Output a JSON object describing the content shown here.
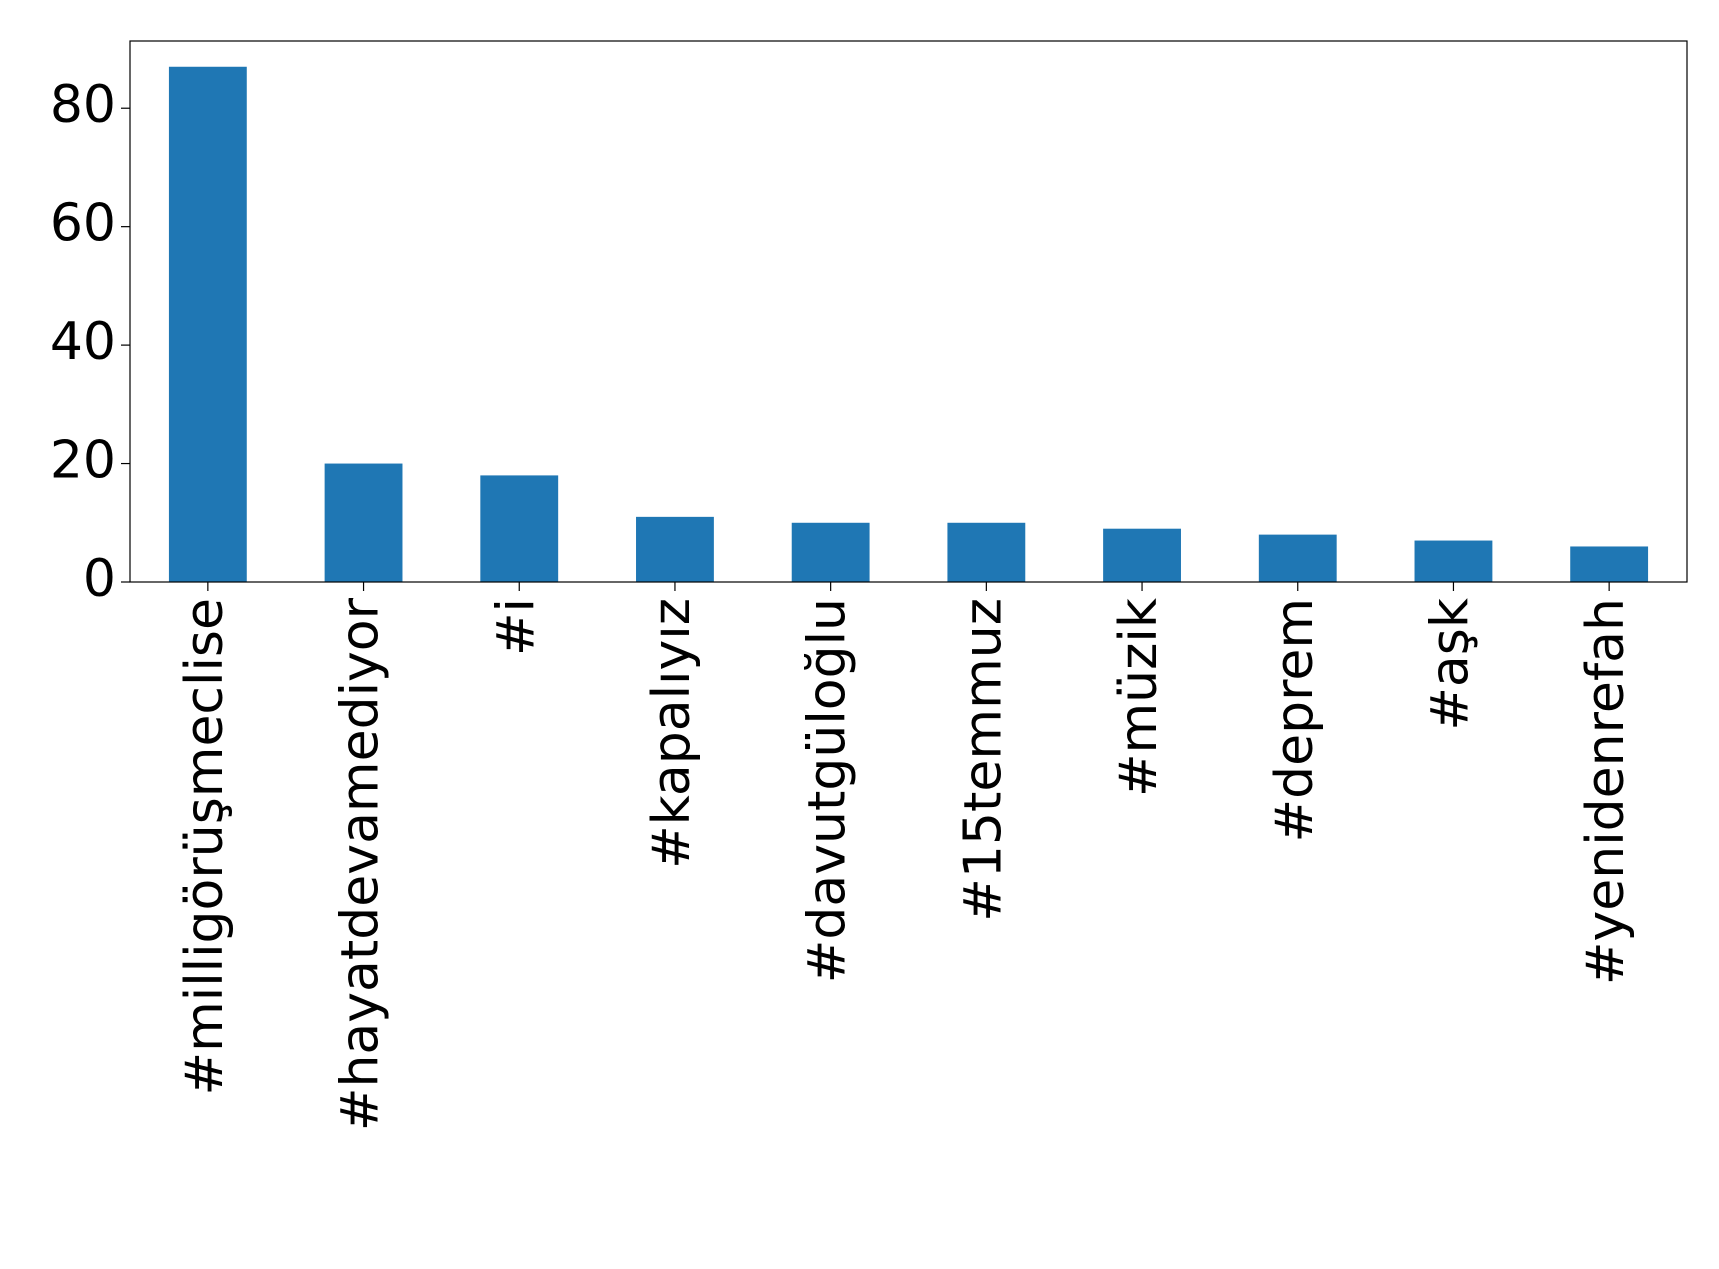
{
  "chart_data": {
    "type": "bar",
    "categories": [
      "#milligörüşmeclise",
      "#hayatdevamediyor",
      "#i",
      "#kapalıyız",
      "#davutgüloğlu",
      "#15temmuz",
      "#müzik",
      "#deprem",
      "#aşk",
      "#yenidenrefah"
    ],
    "values": [
      87,
      20,
      18,
      11,
      10,
      10,
      9,
      8,
      7,
      6
    ],
    "color": "#1f77b4",
    "ylim": [
      0,
      91.35
    ],
    "yticks": [
      0,
      20,
      40,
      60,
      80
    ],
    "grid": false
  }
}
